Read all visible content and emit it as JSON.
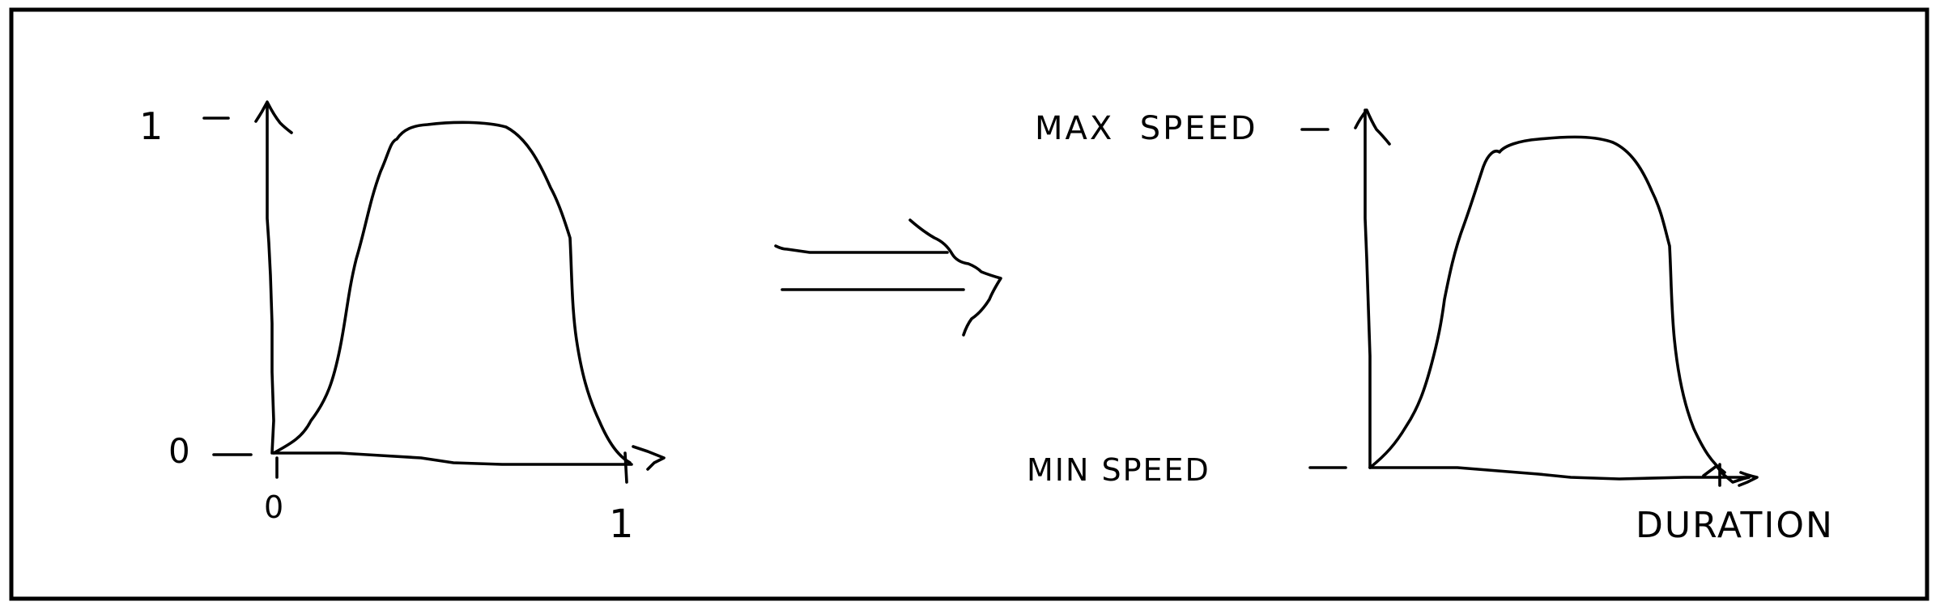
{
  "left_graph": {
    "y_top_label": "1",
    "y_bottom_label": "0",
    "x_start_label": "0",
    "x_end_label": "1"
  },
  "right_graph": {
    "y_top_label": "MAX  SPEED",
    "y_bottom_label": "MIN SPEED",
    "x_label": "DURATION"
  },
  "transform_arrow": {
    "icon": "double-arrow-right-icon"
  },
  "colors": {
    "ink": "#000000",
    "background": "#ffffff"
  }
}
